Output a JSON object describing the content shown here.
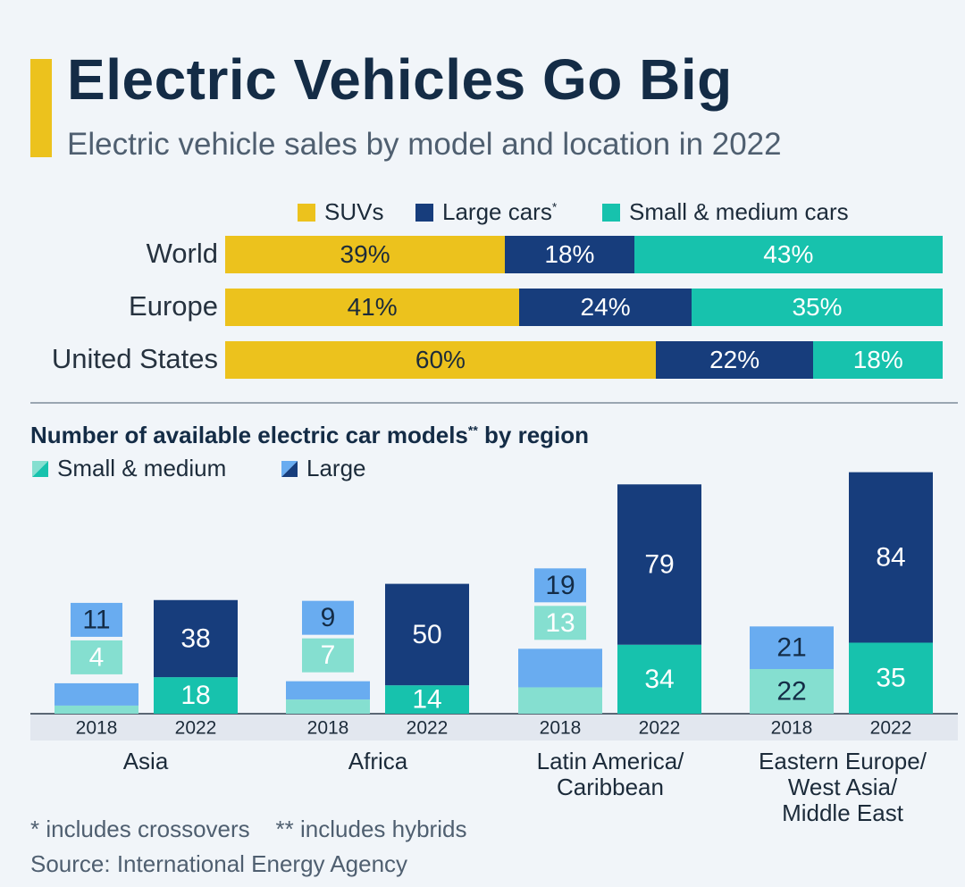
{
  "title": "Electric Vehicles Go Big",
  "subtitle": "Electric vehicle sales by model and location in 2022",
  "colors": {
    "suv": "#ecc21d",
    "large": "#173d7c",
    "small_medium": "#17c2ad",
    "small_light": "#85dfd0",
    "large_light": "#69acf0",
    "accent": "#ecc21d"
  },
  "chart_data": [
    {
      "type": "bar",
      "orientation": "horizontal",
      "stacked": true,
      "title": "Electric vehicle sales by model and location in 2022",
      "legend": [
        "SUVs",
        "Large cars*",
        "Small & medium cars"
      ],
      "categories": [
        "World",
        "Europe",
        "United States"
      ],
      "series": [
        {
          "name": "SUVs",
          "values": [
            39,
            41,
            60
          ],
          "labels": [
            "39%",
            "41%",
            "60%"
          ]
        },
        {
          "name": "Large cars*",
          "values": [
            18,
            24,
            22
          ],
          "labels": [
            "18%",
            "24%",
            "22%"
          ]
        },
        {
          "name": "Small & medium cars",
          "values": [
            43,
            35,
            18
          ],
          "labels": [
            "43%",
            "35%",
            "18%"
          ]
        }
      ],
      "unit": "%"
    },
    {
      "type": "bar",
      "stacked": true,
      "title": "Number of available electric car models** by region",
      "legend": [
        "Small & medium",
        "Large"
      ],
      "groups": [
        {
          "name": "Asia",
          "lines": [
            "Asia"
          ],
          "bars": [
            {
              "year": "2018",
              "small": 4,
              "large": 11
            },
            {
              "year": "2022",
              "small": 18,
              "large": 38
            }
          ]
        },
        {
          "name": "Africa",
          "lines": [
            "Africa"
          ],
          "bars": [
            {
              "year": "2018",
              "small": 7,
              "large": 9
            },
            {
              "year": "2022",
              "small": 14,
              "large": 50
            }
          ]
        },
        {
          "name": "Latin America/ Caribbean",
          "lines": [
            "Latin America/",
            "Caribbean"
          ],
          "bars": [
            {
              "year": "2018",
              "small": 13,
              "large": 19
            },
            {
              "year": "2022",
              "small": 34,
              "large": 79
            }
          ]
        },
        {
          "name": "Eastern Europe/ West Asia/ Middle East",
          "lines": [
            "Eastern Europe/",
            "West Asia/",
            "Middle East"
          ],
          "bars": [
            {
              "year": "2018",
              "small": 22,
              "large": 21
            },
            {
              "year": "2022",
              "small": 35,
              "large": 84
            }
          ]
        }
      ],
      "ylim": [
        0,
        125
      ]
    }
  ],
  "footnotes": "* includes crossovers    ** includes hybrids",
  "source": "Source: International Energy Agency"
}
